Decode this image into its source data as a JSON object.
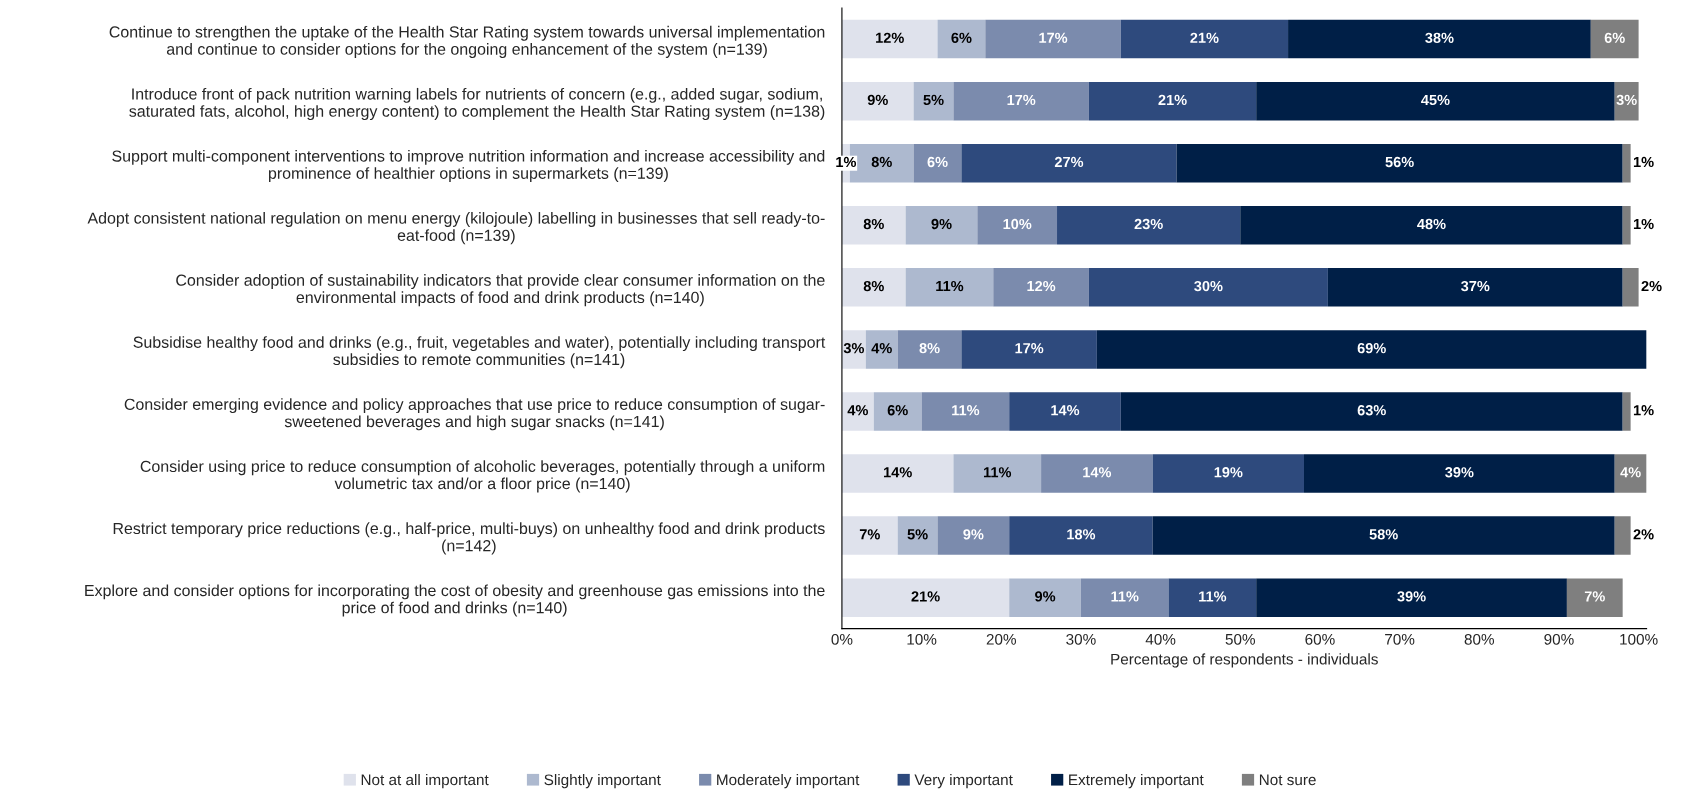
{
  "chart_data": {
    "type": "bar",
    "orientation": "horizontal",
    "stacked": true,
    "xlabel": "Percentage of respondents - individuals",
    "categories": [
      "Continue to strengthen the uptake of the Health Star Rating system towards universal implementation\nand continue to consider options for the ongoing enhancement of the system (n=139)",
      "Introduce front of pack nutrition warning labels for nutrients of concern (e.g., added sugar, sodium,\nsaturated fats, alcohol, high energy content) to complement the Health Star Rating system (n=138)",
      "Support multi-component interventions to improve nutrition information and increase accessibility and\nprominence of healthier options in supermarkets (n=139)",
      "Adopt consistent national regulation on menu energy (kilojoule) labelling in businesses that sell ready-to-\neat-food (n=139)",
      "Consider adoption of sustainability indicators that provide clear consumer information on the\nenvironmental impacts of food and drink products (n=140)",
      "Subsidise healthy food and drinks (e.g., fruit, vegetables and water), potentially including transport\nsubsidies to remote communities (n=141)",
      "Consider emerging evidence and policy approaches that use price to reduce consumption of sugar-\nsweetened beverages and high sugar snacks (n=141)",
      "Consider using price to reduce consumption of alcoholic beverages, potentially through a uniform\nvolumetric tax and/or a floor price (n=140)",
      "Restrict temporary price reductions (e.g., half-price, multi-buys) on unhealthy food and drink products\n(n=142)",
      "Explore and consider options for incorporating the cost of obesity and greenhouse gas emissions into the\nprice of food and drinks (n=140)"
    ],
    "series": [
      {
        "name": "Not at all important",
        "color": "#dfe2ec",
        "values": [
          12,
          9,
          1,
          8,
          8,
          3,
          4,
          14,
          7,
          21
        ],
        "value_labels": [
          "12%",
          "9%",
          "1%",
          "8%",
          "8%",
          "3%",
          "4%",
          "14%",
          "7%",
          "21%"
        ]
      },
      {
        "name": "Slightly important",
        "color": "#adb9cf",
        "values": [
          6,
          5,
          8,
          9,
          11,
          4,
          6,
          11,
          5,
          9
        ],
        "value_labels": [
          "6%",
          "5%",
          "8%",
          "9%",
          "11%",
          "4%",
          "6%",
          "11%",
          "5%",
          "9%"
        ]
      },
      {
        "name": "Moderately important",
        "color": "#7b8bad",
        "values": [
          17,
          17,
          6,
          10,
          12,
          8,
          11,
          14,
          9,
          11
        ],
        "value_labels": [
          "17%",
          "17%",
          "6%",
          "10%",
          "12%",
          "8%",
          "11%",
          "14%",
          "9%",
          "11%"
        ]
      },
      {
        "name": "Very important",
        "color": "#2e4a7d",
        "values": [
          21,
          21,
          27,
          23,
          30,
          17,
          14,
          19,
          18,
          11
        ],
        "value_labels": [
          "21%",
          "21%",
          "27%",
          "23%",
          "30%",
          "17%",
          "14%",
          "19%",
          "18%",
          "11%"
        ]
      },
      {
        "name": "Extremely important",
        "color": "#001f47",
        "values": [
          38,
          45,
          56,
          48,
          37,
          69,
          63,
          39,
          58,
          39
        ],
        "value_labels": [
          "38%",
          "45%",
          "56%",
          "48%",
          "37%",
          "69%",
          "63%",
          "39%",
          "58%",
          "39%"
        ]
      },
      {
        "name": "Not sure",
        "color": "#7f7f7f",
        "values": [
          6,
          3,
          1,
          1,
          2,
          null,
          1,
          4,
          2,
          7
        ],
        "value_labels": [
          "6%",
          "3%",
          "1%",
          "1%",
          "2%",
          null,
          "1%",
          "4%",
          "2%",
          "7%"
        ]
      }
    ],
    "xlim": [
      0,
      101
    ],
    "xticks": [
      {
        "value": 0,
        "label": "0%"
      },
      {
        "value": 10,
        "label": "10%"
      },
      {
        "value": 20,
        "label": "20%"
      },
      {
        "value": 30,
        "label": "30%"
      },
      {
        "value": 40,
        "label": "40%"
      },
      {
        "value": 50,
        "label": "50%"
      },
      {
        "value": 60,
        "label": "60%"
      },
      {
        "value": 70,
        "label": "70%"
      },
      {
        "value": 80,
        "label": "80%"
      },
      {
        "value": 90,
        "label": "90%"
      },
      {
        "value": 100,
        "label": "100%"
      }
    ],
    "grid": false,
    "legend": "bottom"
  }
}
